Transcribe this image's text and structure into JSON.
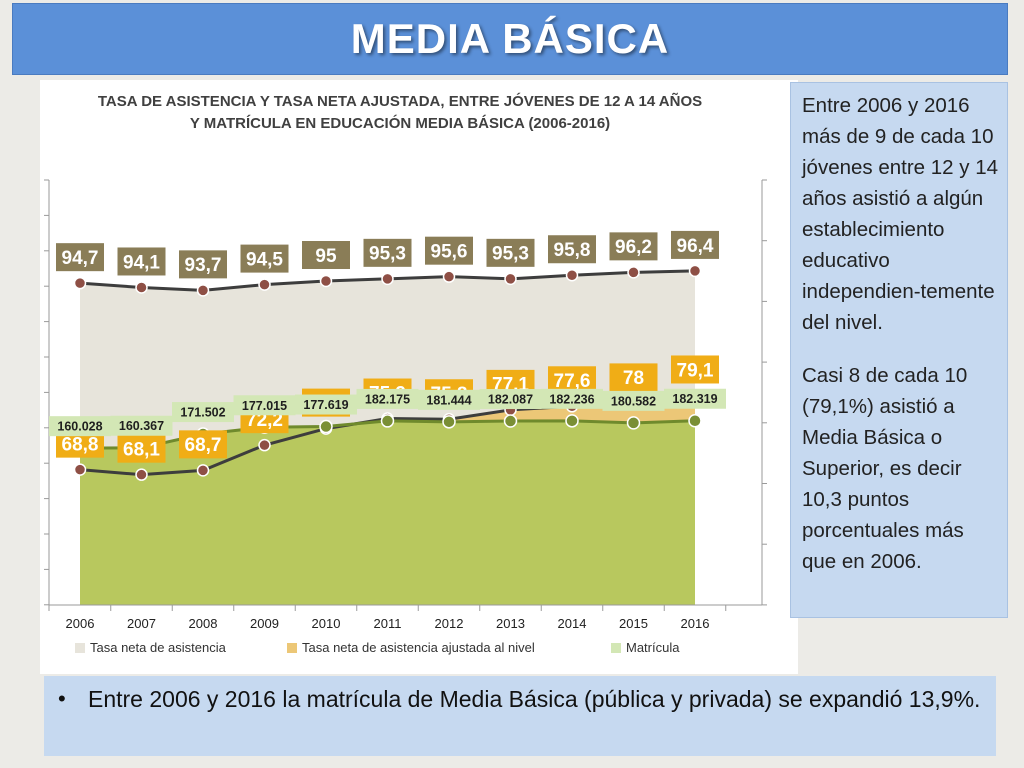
{
  "header": {
    "title": "MEDIA BÁSICA"
  },
  "side_text": {
    "p1": "Entre 2006 y 2016 más de 9 de cada 10 jóvenes entre 12 y 14 años asistió a algún establecimiento educativo independien-temente del nivel.",
    "p2": "Casi 8 de cada 10 (79,1%) asistió a Media Básica o Superior, es decir 10,3 puntos porcentuales más que en 2006."
  },
  "bottom": {
    "bullet": "•",
    "text": "Entre 2006 y 2016 la matrícula de Media Básica (pública y privada) se expandió 13,9%."
  },
  "colors": {
    "header_bg": "#5b90d8",
    "box_bg": "#c6d9f0",
    "asistencia_fill": "#e7e4db",
    "asistencia_label": "#8a7d57",
    "ajustada_fill": "#ecc777",
    "ajustada_label": "#f0ad16",
    "matricula_fill": "#b8c85e",
    "matricula_label": "#d3e7b5",
    "line_dark": "#3d3d3d",
    "marker_brown": "#8e4f45",
    "marker_green": "#7a8f35"
  },
  "chart_data": {
    "type": "area",
    "title_line1": "TASA DE ASISTENCIA Y TASA NETA AJUSTADA, ENTRE JÓVENES DE 12 A 14 AÑOS",
    "title_line2": "Y MATRÍCULA EN EDUCACIÓN MEDIA BÁSICA (2006-2016)",
    "x": [
      "2006",
      "2007",
      "2008",
      "2009",
      "2010",
      "2011",
      "2012",
      "2013",
      "2014",
      "2015",
      "2016"
    ],
    "series": [
      {
        "name": "Tasa neta de asistencia",
        "values": [
          94.7,
          94.1,
          93.7,
          94.5,
          95,
          95.3,
          95.6,
          95.3,
          95.8,
          96.2,
          96.4
        ],
        "labels": [
          "94,7",
          "94,1",
          "93,7",
          "94,5",
          "95",
          "95,3",
          "95,6",
          "95,3",
          "95,8",
          "96,2",
          "96,4"
        ]
      },
      {
        "name": "Tasa neta de asistencia ajustada al nivel",
        "values": [
          68.8,
          68.1,
          68.7,
          72.2,
          74.5,
          75.9,
          75.8,
          77.1,
          77.6,
          78,
          79.1
        ],
        "labels": [
          "68,8",
          "68,1",
          "68,7",
          "72,2",
          "74,5",
          "75,9",
          "75,8",
          "77,1",
          "77,6",
          "78",
          "79,1"
        ]
      },
      {
        "name": "Matrícula",
        "values": [
          160028,
          160367,
          171502,
          177015,
          177619,
          182175,
          181444,
          182087,
          182236,
          180582,
          182319
        ],
        "labels": [
          "160.028",
          "160.367",
          "171.502",
          "177.015",
          "177.619",
          "182.175",
          "181.444",
          "182.087",
          "182.236",
          "180.582",
          "182.319"
        ]
      }
    ],
    "legend_position": "bottom",
    "grid": false
  }
}
